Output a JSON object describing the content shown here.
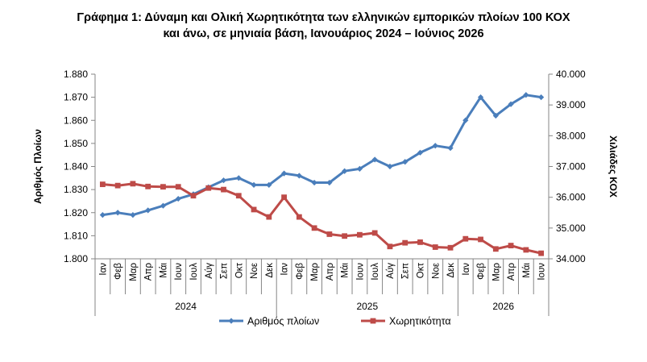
{
  "title_line1": "Γράφημα 1: Δύναμη και Ολική Χωρητικότητα των ελληνικών εμπορικών πλοίων 100 ΚΟΧ",
  "title_line2": "και άνω, σε μηνιαία βάση, Ιανουάριος 2024 – Ιούνιος 2026",
  "chart_data": {
    "type": "line",
    "title": "Γράφημα 1: Δύναμη και Ολική Χωρητικότητα των ελληνικών εμπορικών πλοίων 100 ΚΟΧ και άνω, σε μηνιαία βάση, Ιανουάριος 2024 – Ιούνιος 2026",
    "categories": [
      "Ιαν",
      "Φεβ",
      "Μαρ",
      "Απρ",
      "Μάι",
      "Ιουν",
      "Ιουλ",
      "Αύγ",
      "Σεπ",
      "Οκτ",
      "Νοε",
      "Δεκ",
      "Ιαν",
      "Φεβ",
      "Μαρ",
      "Απρ",
      "Μάι",
      "Ιουν",
      "Ιουλ",
      "Αύγ",
      "Σεπ",
      "Οκτ",
      "Νοε",
      "Δεκ",
      "Ιαν",
      "Φεβ",
      "Μαρ",
      "Απρ",
      "Μάι",
      "Ιουν"
    ],
    "years": [
      {
        "label": "2024",
        "months": 12
      },
      {
        "label": "2025",
        "months": 12
      },
      {
        "label": "2026",
        "months": 6
      }
    ],
    "y_left": {
      "label": "Αριθμός Πλοίων",
      "min": 1800,
      "max": 1880,
      "step": 10,
      "tick_labels": [
        "1.800",
        "1.810",
        "1.820",
        "1.830",
        "1.840",
        "1.850",
        "1.860",
        "1.870",
        "1.880"
      ]
    },
    "y_right": {
      "label": "Χιλιάδες ΚΟΧ",
      "min": 34000,
      "max": 40000,
      "step": 1000,
      "tick_labels": [
        "34.000",
        "35.000",
        "36.000",
        "37.000",
        "38.000",
        "39.000",
        "40.000"
      ]
    },
    "series": [
      {
        "name": "Αριθμός πλοίων",
        "axis": "left",
        "color": "#4a7ebb",
        "marker": "diamond",
        "values": [
          1819,
          1820,
          1819,
          1821,
          1823,
          1826,
          1828,
          1831,
          1834,
          1835,
          1832,
          1832,
          1837,
          1836,
          1833,
          1833,
          1838,
          1839,
          1843,
          1840,
          1842,
          1846,
          1849,
          1848,
          1860,
          1870,
          1862,
          1867,
          1871,
          1870
        ]
      },
      {
        "name": "Χωρητικότητα",
        "axis": "right",
        "color": "#be4b48",
        "marker": "square",
        "values": [
          36420,
          36380,
          36440,
          36350,
          36340,
          36340,
          36050,
          36300,
          36250,
          36050,
          35600,
          35360,
          36000,
          35360,
          35000,
          34800,
          34740,
          34780,
          34840,
          34400,
          34520,
          34540,
          34380,
          34360,
          34650,
          34630,
          34320,
          34430,
          34290,
          34180
        ]
      }
    ],
    "legend": "bottom",
    "grid": false
  }
}
